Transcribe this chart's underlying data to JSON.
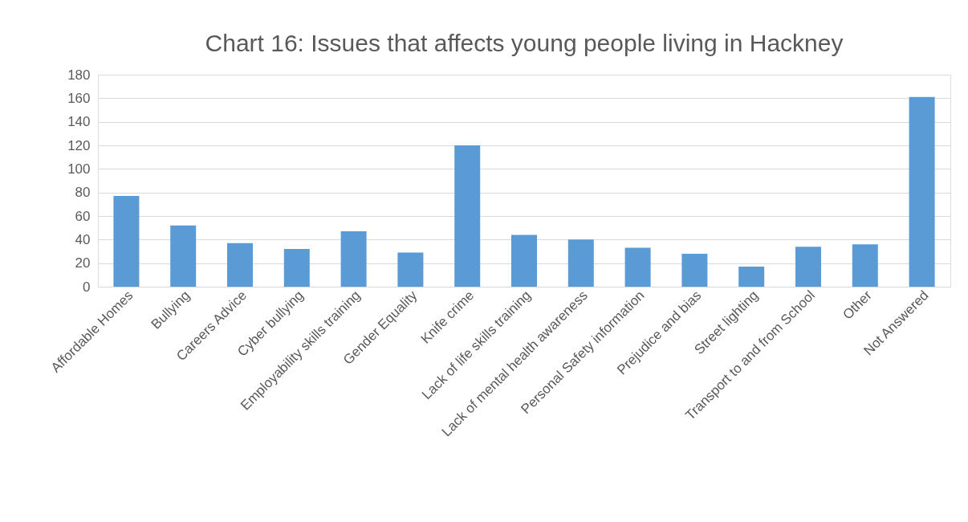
{
  "chart_data": {
    "type": "bar",
    "title": "Chart 16: Issues that affects young people living in Hackney",
    "categories": [
      "Affordable Homes",
      "Bullying",
      "Careers Advice",
      "Cyber bullying",
      "Employability skills training",
      "Gender Equality",
      "Knife crime",
      "Lack of life skills training",
      "Lack of mental health awareness",
      "Personal Safety information",
      "Prejudice and bias",
      "Street lighting",
      "Transport to and from School",
      "Other",
      "Not Answered"
    ],
    "values": [
      77,
      52,
      37,
      32,
      47,
      29,
      120,
      44,
      40,
      33,
      28,
      17,
      34,
      36,
      161
    ],
    "color": "#5b9bd5",
    "ylim": [
      0,
      180
    ],
    "yticks": [
      0,
      20,
      40,
      60,
      80,
      100,
      120,
      140,
      160,
      180
    ],
    "grid": "y"
  }
}
